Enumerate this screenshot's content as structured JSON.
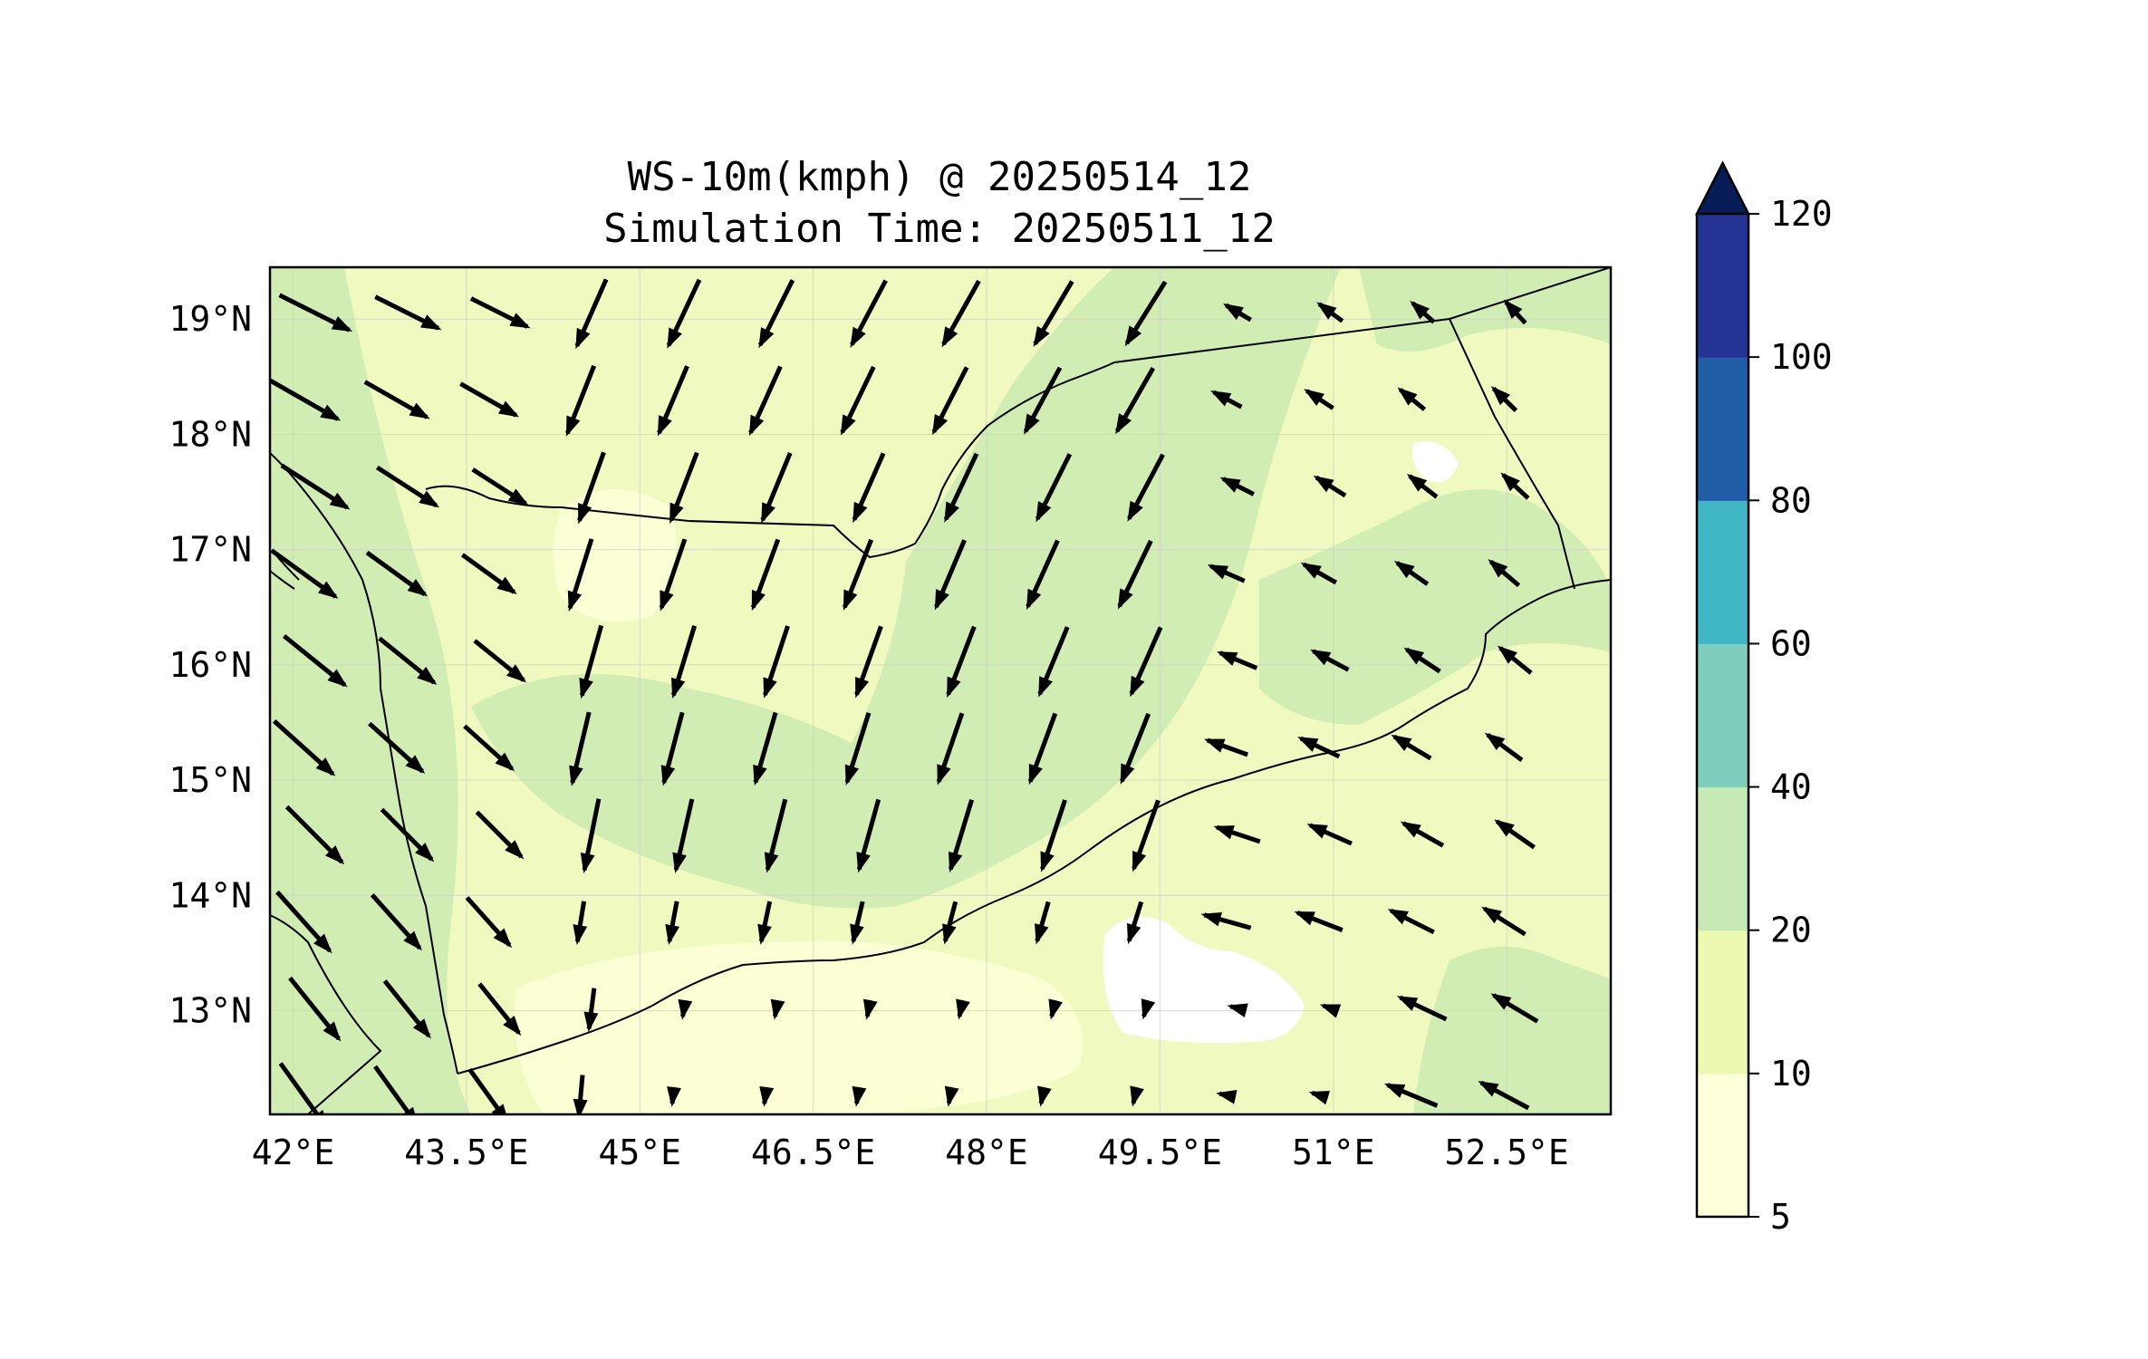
{
  "title": {
    "line1": "WS-10m(kmph) @ 20250514_12",
    "line2": "Simulation Time: 20250511_12"
  },
  "map": {
    "lon_range": [
      41.8,
      53.4
    ],
    "lat_range": [
      12.1,
      19.45
    ],
    "x_ticks": [
      {
        "value": 42.0,
        "label": "42°E"
      },
      {
        "value": 43.5,
        "label": "43.5°E"
      },
      {
        "value": 45.0,
        "label": "45°E"
      },
      {
        "value": 46.5,
        "label": "46.5°E"
      },
      {
        "value": 48.0,
        "label": "48°E"
      },
      {
        "value": 49.5,
        "label": "49.5°E"
      },
      {
        "value": 51.0,
        "label": "51°E"
      },
      {
        "value": 52.5,
        "label": "52.5°E"
      }
    ],
    "y_ticks": [
      {
        "value": 13,
        "label": "13°N"
      },
      {
        "value": 14,
        "label": "14°N"
      },
      {
        "value": 15,
        "label": "15°N"
      },
      {
        "value": 16,
        "label": "16°N"
      },
      {
        "value": 17,
        "label": "17°N"
      },
      {
        "value": 18,
        "label": "18°N"
      },
      {
        "value": 19,
        "label": "19°N"
      }
    ],
    "gridlines": true,
    "field_colors": {
      "below_5": "#ffffff",
      "5_10": "#fcfed2",
      "10_20": "#eef8b8",
      "20_40": "#d1edb5"
    }
  },
  "colorbar": {
    "extend": "max",
    "extend_color": "#081d58",
    "levels": [
      {
        "from": 5,
        "to": 10,
        "color": "#ffffd9"
      },
      {
        "from": 10,
        "to": 20,
        "color": "#edf8b1"
      },
      {
        "from": 20,
        "to": 40,
        "color": "#c7e9b4"
      },
      {
        "from": 40,
        "to": 60,
        "color": "#7fcdbb"
      },
      {
        "from": 60,
        "to": 80,
        "color": "#41b6c4"
      },
      {
        "from": 80,
        "to": 100,
        "color": "#225ea8"
      },
      {
        "from": 100,
        "to": 120,
        "color": "#253494"
      }
    ],
    "tick_labels": [
      "5",
      "10",
      "20",
      "40",
      "60",
      "80",
      "100",
      "120"
    ]
  },
  "wind_vectors": {
    "units": "kmph",
    "direction": "southward flow over the interior, northwestward flow over the east"
  }
}
